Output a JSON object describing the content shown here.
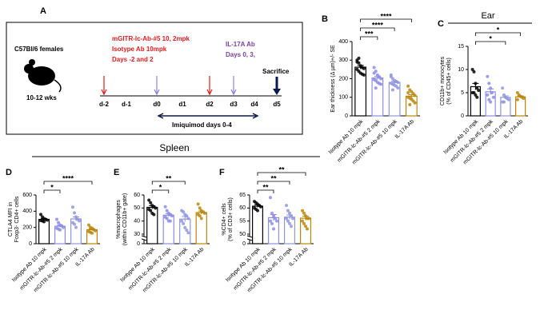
{
  "diagram": {
    "panel": "A",
    "strain": "C57Bl/6 females",
    "age": "10-12 wks",
    "treatment_lines": [
      "mGITR-lc-Ab-#5  10, 2mpk",
      "Isotype Ab 10mpk",
      "Days -2 and 2"
    ],
    "il17_lines": [
      "IL-17A Ab",
      "Days 0, 3,"
    ],
    "sacrifice": "Sacrifice",
    "days": [
      "d-2",
      "d-1",
      "d0",
      "d1",
      "d2",
      "d3",
      "d4",
      "d5"
    ],
    "imiquimod": "Imiquimod days 0-4"
  },
  "section_labels": {
    "ear": "Ear",
    "spleen": "Spleen"
  },
  "chart_data": [
    {
      "type": "bar",
      "panel": "B",
      "ylabel": [
        "Ear thickness (Δ µm)+/- SE"
      ],
      "categories": [
        "Isotype Ab 10 mpk",
        "mGITR-lc-Ab-#5 2 mpk",
        "mGITR-lc-Ab-#5 10 mpk",
        "IL-17A Ab"
      ],
      "colors": [
        "#000000",
        "#8c8ce8",
        "#8f96dc",
        "#b8860b"
      ],
      "values": [
        262,
        204,
        180,
        106
      ],
      "errors": [
        10,
        9,
        7,
        8
      ],
      "points": [
        [
          300,
          285,
          270,
          260,
          255,
          250,
          240,
          230,
          225,
          220,
          290,
          310
        ],
        [
          260,
          240,
          220,
          210,
          200,
          195,
          190,
          180,
          175,
          170,
          230,
          150
        ],
        [
          220,
          200,
          190,
          185,
          180,
          175,
          170,
          165,
          160,
          150,
          210,
          140
        ],
        [
          160,
          140,
          130,
          120,
          110,
          100,
          95,
          90,
          80,
          70,
          125,
          60
        ]
      ],
      "ylim": [
        0,
        400
      ],
      "yticks": [
        0,
        100,
        200,
        300,
        400
      ],
      "significance": [
        {
          "from": 0,
          "to": 1,
          "label": "***"
        },
        {
          "from": 0,
          "to": 2,
          "label": "****"
        },
        {
          "from": 0,
          "to": 3,
          "label": "****"
        }
      ]
    },
    {
      "type": "bar",
      "panel": "C",
      "ylabel": [
        "CD11b+ monocytes",
        "(% of CD45+ cells)"
      ],
      "categories": [
        "Isotype Ab 10 mpk",
        "mGITR-lc-Ab-#5 2 mpk",
        "mGITR-lc-Ab-#5 10 mpk",
        "IL-17A Ab"
      ],
      "colors": [
        "#000000",
        "#8c8ce8",
        "#8f96dc",
        "#b8860b"
      ],
      "values": [
        6.3,
        5.2,
        4.0,
        4.1
      ],
      "errors": [
        0.7,
        0.6,
        0.3,
        0.2
      ],
      "points": [
        [
          10,
          9.5,
          7,
          6,
          5.5,
          5,
          5,
          4.5,
          4
        ],
        [
          8.5,
          7,
          6,
          5,
          4,
          4.5,
          3.5,
          3
        ],
        [
          6,
          4.5,
          4,
          3.8,
          3.5,
          3,
          3
        ],
        [
          5,
          4.5,
          4.2,
          4,
          3.8,
          3.5
        ]
      ],
      "ylim": [
        0,
        15
      ],
      "yticks": [
        0,
        5,
        10,
        15
      ],
      "significance": [
        {
          "from": 0,
          "to": 2,
          "label": "*"
        },
        {
          "from": 0,
          "to": 3,
          "label": "*"
        }
      ]
    },
    {
      "type": "bar",
      "panel": "D",
      "ylabel": [
        "CTLA4 MFI in",
        "Foxp3- CD4+ cells"
      ],
      "categories": [
        "Isotype Ab 10 mpk",
        "mGITR-lc-Ab-#5 2 mpk",
        "mGITR-lc-Ab-#5 10 mpk",
        "IL-17A Ab"
      ],
      "colors": [
        "#000000",
        "#8c8ce8",
        "#8f96dc",
        "#b8860b"
      ],
      "values": [
        300,
        215,
        305,
        172
      ],
      "errors": [
        10,
        12,
        25,
        10
      ],
      "points": [
        [
          360,
          330,
          310,
          300,
          290,
          285,
          280,
          270
        ],
        [
          300,
          260,
          230,
          220,
          200,
          190,
          180,
          170
        ],
        [
          450,
          380,
          330,
          300,
          280,
          260,
          240,
          200
        ],
        [
          230,
          200,
          190,
          175,
          160,
          150,
          140,
          130
        ]
      ],
      "ylim": [
        0,
        600
      ],
      "yticks": [
        0,
        200,
        400,
        600
      ],
      "significance": [
        {
          "from": 0,
          "to": 1,
          "label": "*"
        },
        {
          "from": 0,
          "to": 3,
          "label": "****"
        }
      ]
    },
    {
      "type": "bar",
      "panel": "E",
      "ylabel": [
        "%macrophages",
        "(within CD11b+ gate)"
      ],
      "categories": [
        "Isotype Ab 10 mpk",
        "mGITR-lc-Ab-#5 2 mpk",
        "mGITR-lc-Ab-#5 10 mpk",
        "IL-17A Ab"
      ],
      "colors": [
        "#000000",
        "#8c8ce8",
        "#8f96dc",
        "#b8860b"
      ],
      "values": [
        50.5,
        44.5,
        41.5,
        46.5
      ],
      "errors": [
        1.2,
        1.2,
        2,
        1.2
      ],
      "points": [
        [
          56,
          54,
          52,
          51,
          50,
          49,
          48,
          46,
          45
        ],
        [
          51,
          48,
          46,
          45,
          44,
          43,
          42,
          40,
          40
        ],
        [
          48,
          47,
          45,
          44,
          42,
          40,
          38,
          35,
          33,
          31
        ],
        [
          53,
          50,
          48,
          47,
          46,
          45,
          44,
          42
        ]
      ],
      "ylim": [
        0,
        60
      ],
      "yticks": [
        0,
        30,
        40,
        50,
        60
      ],
      "axis_break": [
        0,
        30
      ],
      "significance": [
        {
          "from": 0,
          "to": 1,
          "label": "*"
        },
        {
          "from": 0,
          "to": 2,
          "label": "**"
        }
      ]
    },
    {
      "type": "bar",
      "panel": "F",
      "ylabel": [
        "%CD4+ cells",
        "(% of CD3+ cells)"
      ],
      "categories": [
        "Isotype Ab 10 mpk",
        "mGITR-lc-Ab-#5 2 mpk",
        "mGITR-lc-Ab-#5 10 mpk",
        "IL-17A Ab"
      ],
      "colors": [
        "#000000",
        "#8c8ce8",
        "#8f96dc",
        "#b8860b"
      ],
      "values": [
        60.7,
        56.3,
        56.5,
        56.1
      ],
      "errors": [
        0.5,
        1.2,
        0.8,
        0.8
      ],
      "points": [
        [
          62.5,
          62,
          61.5,
          61,
          60.5,
          60,
          59.5,
          59
        ],
        [
          64,
          58,
          57,
          56,
          55,
          55,
          54,
          52
        ],
        [
          61,
          59,
          58,
          57,
          56,
          56,
          55,
          54,
          53
        ],
        [
          59,
          58,
          57,
          56,
          56,
          55,
          54,
          53,
          52
        ]
      ],
      "ylim": [
        0,
        65
      ],
      "yticks": [
        0,
        50,
        55,
        60,
        65
      ],
      "axis_break": [
        0,
        50
      ],
      "significance": [
        {
          "from": 0,
          "to": 1,
          "label": "**"
        },
        {
          "from": 0,
          "to": 2,
          "label": "**"
        },
        {
          "from": 0,
          "to": 3,
          "label": "**"
        }
      ]
    }
  ]
}
